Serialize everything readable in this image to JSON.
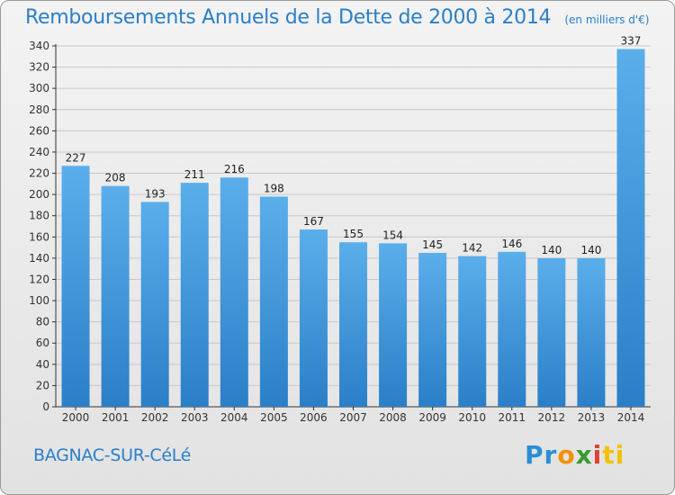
{
  "header": {
    "title": "Remboursements Annuels de la Dette de 2000 à 2014",
    "unit": "(en milliers d'€)"
  },
  "footer": {
    "commune": "BAGNAC-SUR-CéLé",
    "logo_parts": [
      "Pr",
      "o",
      "x",
      "i",
      "ti"
    ]
  },
  "colors": {
    "bar_top": "#5aaeea",
    "bar_bottom": "#2a7fc8",
    "title": "#2a7fc8",
    "axis": "#333333",
    "grid": "#c8c8c8"
  },
  "chart_data": {
    "type": "bar",
    "title": "Remboursements Annuels de la Dette de 2000 à 2014",
    "xlabel": "",
    "ylabel": "",
    "categories": [
      "2000",
      "2001",
      "2002",
      "2003",
      "2004",
      "2005",
      "2006",
      "2007",
      "2008",
      "2009",
      "2010",
      "2011",
      "2012",
      "2013",
      "2014"
    ],
    "values": [
      227,
      208,
      193,
      211,
      216,
      198,
      167,
      155,
      154,
      145,
      142,
      146,
      140,
      140,
      337
    ],
    "ylim": [
      0,
      340
    ],
    "yticks": [
      0,
      20,
      40,
      60,
      80,
      100,
      120,
      140,
      160,
      180,
      200,
      220,
      240,
      260,
      280,
      300,
      320,
      340
    ],
    "grid": "horizontal",
    "legend": "none"
  }
}
